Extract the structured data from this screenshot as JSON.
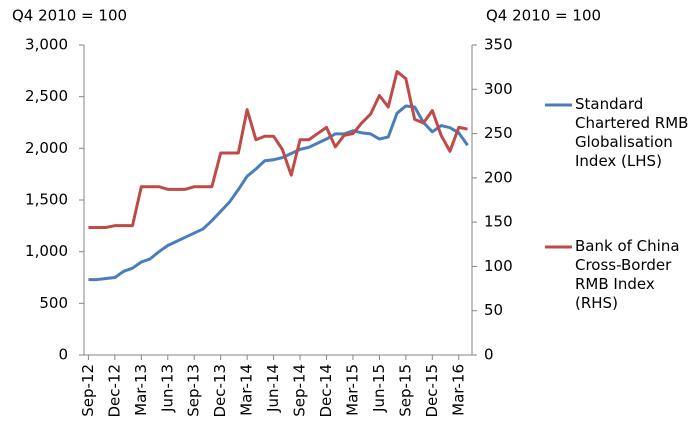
{
  "chart_data": {
    "type": "line",
    "ylabel": "Q4 2010 = 100",
    "y2label": "Q4 2010 = 100",
    "categories": [
      "Sep-12",
      null,
      null,
      "Dec-12",
      null,
      null,
      "Mar-13",
      null,
      null,
      "Jun-13",
      null,
      null,
      "Sep-13",
      null,
      null,
      "Dec-13",
      null,
      null,
      "Mar-14",
      null,
      null,
      "Jun-14",
      null,
      null,
      "Sep-14",
      null,
      null,
      "Dec-14",
      null,
      null,
      "Mar-15",
      null,
      null,
      "Jun-15",
      null,
      null,
      "Sep-15",
      null,
      null,
      "Dec-15",
      null,
      null,
      "Mar-16",
      null
    ],
    "series": [
      {
        "name": "Standard Chartered RMB Globalisation Index (LHS)",
        "color": "#4a7ebb",
        "axis": "y",
        "values": [
          730,
          730,
          740,
          750,
          810,
          840,
          900,
          930,
          1000,
          1060,
          1100,
          1140,
          1180,
          1220,
          1300,
          1390,
          1480,
          1600,
          1730,
          1800,
          1880,
          1890,
          1910,
          1950,
          1990,
          2010,
          2050,
          2090,
          2140,
          2140,
          2170,
          2150,
          2140,
          2090,
          2110,
          2340,
          2410,
          2400,
          2250,
          2160,
          2220,
          2200,
          2150,
          2030
        ]
      },
      {
        "name": "Bank of China Cross-Border RMB Index (RHS)",
        "color": "#be4b48",
        "axis": "y2",
        "values": [
          144,
          144,
          144,
          146,
          146,
          146,
          190,
          190,
          190,
          187,
          187,
          187,
          190,
          190,
          190,
          228,
          228,
          228,
          277,
          243,
          247,
          247,
          232,
          203,
          243,
          243,
          250,
          257,
          235,
          248,
          250,
          262,
          272,
          293,
          280,
          320,
          312,
          266,
          262,
          276,
          248,
          230,
          257,
          255
        ]
      }
    ],
    "ylim": [
      0,
      3000
    ],
    "yticks": [
      0,
      500,
      {
        "value": 1000,
        "label": "1,000"
      },
      {
        "value": 1500,
        "label": "1,500"
      },
      {
        "value": 2000,
        "label": "2,000"
      },
      {
        "value": 2500,
        "label": "2,500"
      },
      {
        "value": 3000,
        "label": "3,000"
      }
    ],
    "y2lim": [
      0,
      350
    ],
    "y2ticks": [
      0,
      50,
      100,
      150,
      200,
      250,
      300,
      350
    ],
    "grid": false,
    "legend": "right"
  }
}
